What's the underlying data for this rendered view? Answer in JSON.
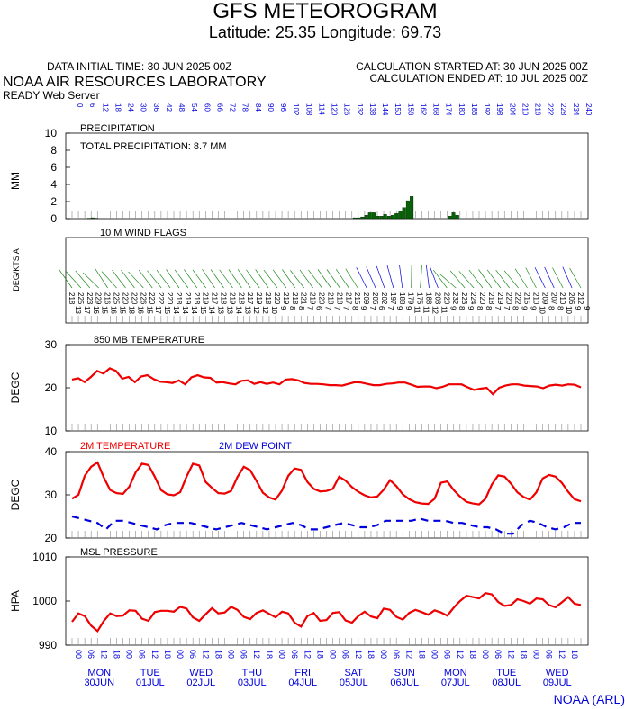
{
  "header": {
    "title": "GFS METEOROGRAM",
    "subtitle": "Latitude: 25.35 Longitude:  69.73",
    "data_initial_time": "DATA INITIAL TIME: 30 JUN 2025 00Z",
    "calc_started": "CALCULATION STARTED AT: 30 JUN 2025 00Z",
    "calc_ended": "CALCULATION ENDED AT: 10 JUL 2025 00Z",
    "lab": "NOAA AIR RESOURCES LABORATORY",
    "server": "READY Web Server"
  },
  "footer": {
    "credit": "NOAA (ARL)"
  },
  "colors": {
    "red": "#ee0000",
    "blue": "#0000dd",
    "green": "#006400",
    "wind_green": "#228b22",
    "grid": "#888888"
  },
  "time_axis": {
    "forecast_hours": [
      0,
      6,
      12,
      18,
      24,
      30,
      36,
      42,
      48,
      54,
      60,
      66,
      72,
      78,
      84,
      90,
      96,
      102,
      108,
      114,
      120,
      126,
      132,
      138,
      144,
      150,
      156,
      162,
      168,
      174,
      180,
      186,
      192,
      198,
      204,
      210,
      216,
      222,
      228,
      234,
      240
    ],
    "day_labels": [
      {
        "day": "MON",
        "date": "30JUN"
      },
      {
        "day": "TUE",
        "date": "01JUL"
      },
      {
        "day": "WED",
        "date": "02JUL"
      },
      {
        "day": "THU",
        "date": "03JUL"
      },
      {
        "day": "FRI",
        "date": "04JUL"
      },
      {
        "day": "SAT",
        "date": "05JUL"
      },
      {
        "day": "SUN",
        "date": "06JUL"
      },
      {
        "day": "MON",
        "date": "07JUL"
      },
      {
        "day": "TUE",
        "date": "08JUL"
      },
      {
        "day": "WED",
        "date": "09JUL"
      }
    ],
    "bottom_hours": [
      "00",
      "06",
      "12",
      "18"
    ]
  },
  "chart_data": [
    {
      "type": "bar",
      "panel": "precipitation",
      "title": "PRECIPITATION",
      "annotation": "TOTAL PRECIPITATION:   8.7 MM",
      "ylabel": "MM",
      "ylim": [
        0,
        10
      ],
      "yticks": [
        0,
        2,
        4,
        6,
        8,
        10
      ],
      "values": [
        0,
        0,
        0,
        0,
        0.05,
        0.1,
        0.05,
        0,
        0,
        0,
        0,
        0,
        0,
        0,
        0,
        0,
        0,
        0,
        0,
        0,
        0,
        0,
        0,
        0,
        0,
        0,
        0,
        0,
        0,
        0,
        0,
        0,
        0,
        0,
        0,
        0,
        0,
        0,
        0,
        0,
        0,
        0,
        0,
        0,
        0,
        0,
        0,
        0,
        0,
        0,
        0,
        0,
        0,
        0,
        0,
        0,
        0,
        0,
        0,
        0,
        0,
        0,
        0,
        0,
        0,
        0,
        0,
        0,
        0,
        0,
        0,
        0,
        0,
        0,
        0.1,
        0.1,
        0.2,
        0.4,
        0.7,
        0.7,
        0.3,
        0.3,
        0.5,
        0.3,
        0.4,
        0.6,
        0.9,
        1.3,
        2.1,
        2.6,
        0,
        0,
        0,
        0,
        0,
        0,
        0,
        0,
        0,
        0.3,
        0.7,
        0.4,
        0,
        0,
        0,
        0,
        0,
        0,
        0,
        0,
        0,
        0,
        0,
        0,
        0,
        0,
        0,
        0,
        0,
        0,
        0,
        0,
        0,
        0,
        0,
        0,
        0,
        0,
        0,
        0,
        0,
        0,
        0,
        0
      ]
    },
    {
      "type": "wind",
      "panel": "wind",
      "title": "10 M  WIND FLAGS",
      "ylabel": "DEG/KTS  A",
      "directions": [
        "218",
        "225",
        "223",
        "229",
        "216",
        "225",
        "220",
        "220",
        "226",
        "220",
        "222",
        "220",
        "218",
        "219",
        "218",
        "219",
        "217",
        "218",
        "219",
        "218",
        "217",
        "219",
        "218",
        "220",
        "219",
        "218",
        "221",
        "219",
        "220",
        "218",
        "218",
        "217",
        "215",
        "209",
        "206",
        "202",
        "197",
        "188",
        "179",
        "175",
        "188",
        "203",
        "220",
        "232",
        "223",
        "224",
        "220",
        "218",
        "219",
        "220",
        "222",
        "215",
        "210",
        "209",
        "207",
        "210",
        "206",
        "212"
      ],
      "speeds": [
        "13",
        "17",
        "16",
        "15",
        "16",
        "15",
        "18",
        "16",
        "15",
        "17",
        "15",
        "14",
        "14",
        "14",
        "15",
        "14",
        "13",
        "13",
        "14",
        "13",
        "12",
        "12",
        "10",
        "9",
        "8",
        "8",
        "7",
        "6",
        "7",
        "7",
        "7",
        "8",
        "9",
        "7",
        "6",
        "7",
        "9",
        "9",
        "11",
        "11",
        "12",
        "11",
        "9",
        "8",
        "9",
        "8",
        "8",
        "7",
        "7",
        "8",
        "9",
        "9",
        "10",
        "8",
        "8",
        "10",
        "9",
        "9"
      ]
    },
    {
      "type": "line",
      "panel": "t850",
      "title": "850 MB  TEMPERATURE",
      "ylabel": "DEGC",
      "ylim": [
        10,
        30
      ],
      "yticks": [
        10,
        20,
        30
      ],
      "series": [
        {
          "color": "#ee0000",
          "values": [
            21.9,
            22.2,
            21.3,
            22.5,
            23.9,
            23.3,
            24.5,
            23.9,
            22.1,
            22.5,
            21.3,
            22.6,
            22.9,
            22.0,
            21.4,
            21.3,
            21.1,
            21.7,
            20.8,
            22.4,
            22.9,
            22.4,
            22.3,
            21.2,
            21.3,
            21.0,
            20.8,
            21.6,
            21.7,
            20.9,
            21.3,
            20.9,
            21.2,
            20.8,
            21.9,
            22.0,
            21.7,
            21.1,
            20.9,
            20.9,
            20.8,
            20.6,
            20.6,
            20.5,
            20.9,
            21.3,
            21.2,
            20.9,
            20.6,
            20.6,
            20.9,
            21.0,
            21.2,
            21.2,
            20.7,
            20.2,
            20.3,
            20.3,
            19.9,
            20.2,
            20.8,
            20.8,
            20.8,
            20.1,
            19.5,
            19.8,
            20.0,
            18.5,
            20.0,
            20.5,
            20.8,
            20.8,
            20.5,
            20.4,
            20.3,
            19.9,
            20.5,
            20.7,
            20.5,
            20.8,
            20.7,
            20.1
          ]
        }
      ]
    },
    {
      "type": "line",
      "panel": "t2m",
      "title": "2M TEMPERATURE",
      "title2": "2M  DEW POINT",
      "ylabel": "DEGC",
      "ylim": [
        20,
        40
      ],
      "yticks": [
        20,
        30,
        40
      ],
      "series": [
        {
          "name": "2M TEMPERATURE",
          "color": "#ee0000",
          "values": [
            29.1,
            30.0,
            34.4,
            36.5,
            37.5,
            34.0,
            31.1,
            30.4,
            30.2,
            31.9,
            35.2,
            37.2,
            36.9,
            34.2,
            31.1,
            30.1,
            29.9,
            30.6,
            34.2,
            37.2,
            36.8,
            33.0,
            31.6,
            30.4,
            30.3,
            30.9,
            34.1,
            36.5,
            35.7,
            33.2,
            30.5,
            29.4,
            28.9,
            31.0,
            34.4,
            36.1,
            35.8,
            33.0,
            31.4,
            30.8,
            30.9,
            31.4,
            34.2,
            33.3,
            31.8,
            30.7,
            29.9,
            29.4,
            29.6,
            31.2,
            33.4,
            32.0,
            30.1,
            29.0,
            28.3,
            28.0,
            27.9,
            29.1,
            32.8,
            33.1,
            31.1,
            29.6,
            28.4,
            28.0,
            27.8,
            29.1,
            32.4,
            34.5,
            34.2,
            32.6,
            30.6,
            29.5,
            28.9,
            30.6,
            33.8,
            34.6,
            34.2,
            32.8,
            30.7,
            29.0,
            28.5
          ]
        },
        {
          "name": "2M  DEW POINT",
          "color": "#0000dd",
          "values": [
            25.0,
            24.5,
            24.0,
            23.5,
            22.0,
            24.0,
            24.0,
            23.5,
            23.0,
            22.5,
            22.0,
            23.0,
            23.5,
            23.5,
            23.5,
            23.0,
            22.5,
            22.0,
            22.5,
            23.0,
            23.5,
            23.0,
            22.5,
            22.0,
            22.5,
            23.0,
            23.5,
            23.0,
            22.0,
            22.0,
            22.5,
            23.0,
            23.5,
            23.0,
            22.5,
            22.5,
            23.0,
            24.0,
            24.0,
            24.0,
            24.0,
            24.5,
            24.0,
            24.0,
            24.0,
            23.5,
            23.5,
            23.0,
            22.5,
            22.5,
            22.0,
            21.0,
            21.0,
            23.0,
            24.0,
            23.5,
            22.5,
            22.0,
            22.5,
            23.5,
            23.5
          ]
        }
      ]
    },
    {
      "type": "line",
      "panel": "mslp",
      "title": "MSL PRESSURE",
      "ylabel": "HPA",
      "ylim": [
        990,
        1010
      ],
      "yticks": [
        990,
        1000,
        1010
      ],
      "series": [
        {
          "color": "#ee0000",
          "values": [
            995.3,
            997.2,
            996.6,
            994.4,
            993.2,
            995.5,
            997.2,
            996.6,
            996.7,
            997.9,
            997.8,
            996.0,
            995.5,
            997.5,
            997.8,
            997.8,
            997.6,
            998.7,
            998.3,
            996.3,
            995.5,
            997.0,
            998.4,
            997.2,
            997.4,
            998.7,
            998.0,
            996.4,
            995.9,
            997.3,
            997.9,
            997.1,
            996.3,
            997.6,
            997.2,
            995.1,
            994.2,
            996.6,
            997.3,
            995.5,
            995.7,
            997.3,
            997.5,
            995.6,
            995.1,
            996.6,
            997.6,
            996.5,
            996.1,
            998.3,
            998.0,
            996.4,
            995.8,
            997.3,
            998.0,
            997.5,
            996.9,
            997.9,
            997.4,
            996.7,
            998.5,
            1000.0,
            1001.2,
            1000.9,
            1000.6,
            1001.8,
            1001.5,
            999.8,
            998.9,
            999.1,
            1000.4,
            1000.0,
            999.4,
            1000.6,
            1000.4,
            999.1,
            998.6,
            999.7,
            1000.9,
            999.4,
            999.1
          ]
        }
      ]
    }
  ]
}
